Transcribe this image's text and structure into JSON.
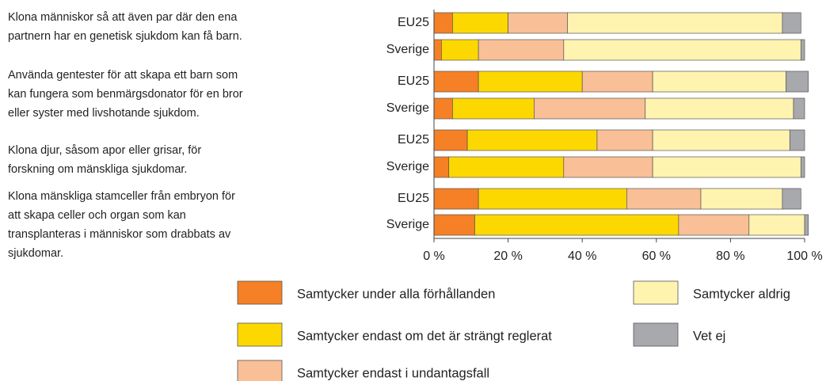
{
  "chart_data": {
    "type": "stacked-barh",
    "groups": [
      "Klona människor så att även par där den ena partnern har en genetisk sjukdom kan få barn.",
      "Använda gentester för att skapa ett barn som kan fungera som benmärgsdonator för en bror eller syster med livshotande sjukdom.",
      "Klona djur, såsom apor eller grisar, för forskning om mänskliga sjukdomar.",
      "Klona mänskliga stamceller från embryon för att skapa celler och organ som kan transplanteras i människor som drabbats av sjukdomar."
    ],
    "categories": [
      "EU25",
      "Sverige",
      "EU25",
      "Sverige",
      "EU25",
      "Sverige",
      "EU25",
      "Sverige"
    ],
    "series": [
      {
        "name": "Samtycker under alla förhållanden",
        "color": "#f58025",
        "values": [
          5,
          2,
          12,
          5,
          9,
          4,
          12,
          11
        ]
      },
      {
        "name": "Samtycker endast om det är strängt reglerat",
        "color": "#fcd800",
        "values": [
          15,
          10,
          28,
          22,
          35,
          31,
          40,
          55
        ]
      },
      {
        "name": "Samtycker endast i undantagsfall",
        "color": "#f9bf96",
        "values": [
          16,
          23,
          19,
          30,
          15,
          24,
          20,
          19
        ]
      },
      {
        "name": "Samtycker aldrig",
        "color": "#fff3b0",
        "values": [
          58,
          64,
          36,
          40,
          37,
          40,
          22,
          15
        ]
      },
      {
        "name": "Vet ej",
        "color": "#a7a9ac",
        "values": [
          5,
          1,
          6,
          3,
          4,
          1,
          5,
          1
        ]
      }
    ],
    "xlim": [
      0,
      100
    ],
    "xticks": [
      {
        "value": 0,
        "label": "0 %"
      },
      {
        "value": 20,
        "label": "20 %"
      },
      {
        "value": 40,
        "label": "40 %"
      },
      {
        "value": 60,
        "label": "60 %"
      },
      {
        "value": 80,
        "label": "80 %"
      },
      {
        "value": 100,
        "label": "100 %"
      }
    ]
  }
}
